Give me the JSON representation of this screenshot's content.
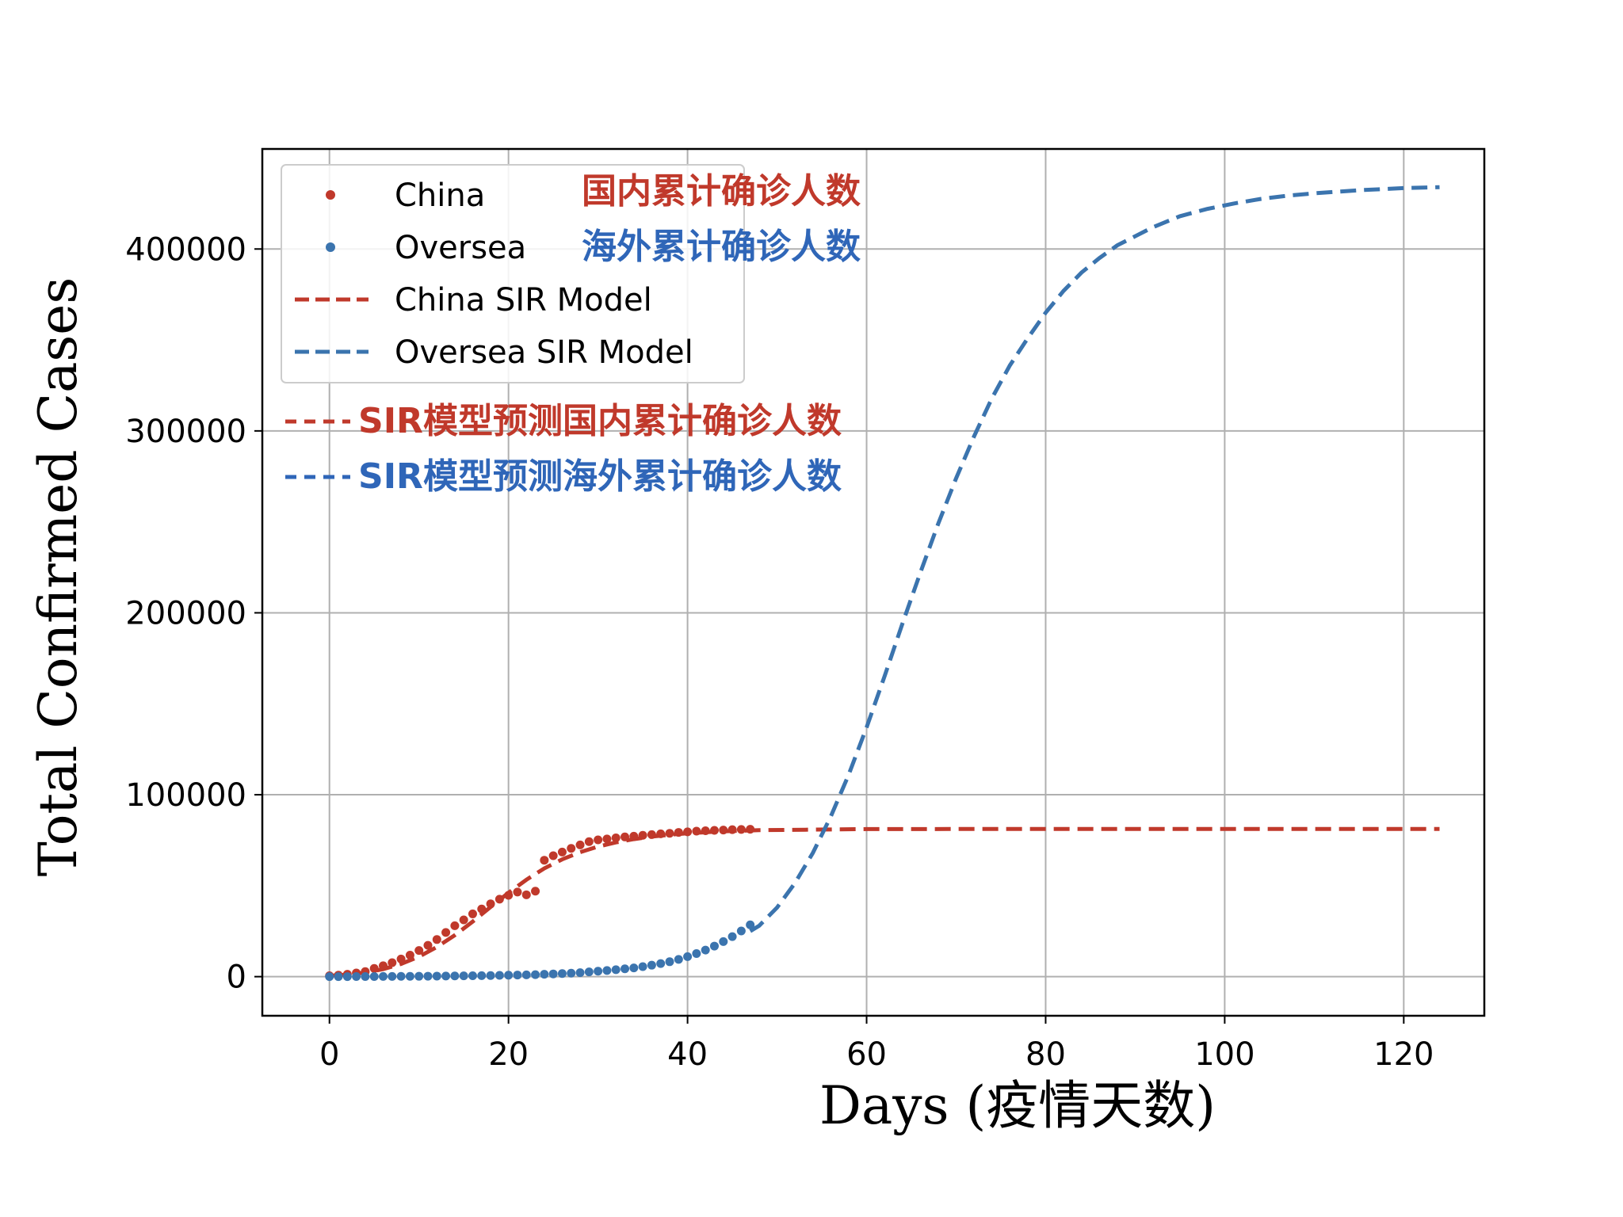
{
  "colors": {
    "china": "#c0392b",
    "oversea": "#3b74ae",
    "china_label": "#c0392b",
    "oversea_label": "#2f66b8"
  },
  "chart_data": {
    "type": "line",
    "xlabel": "Days (疫情天数)",
    "ylabel": "Total Confirmed Cases",
    "xlim": [
      -7.5,
      129
    ],
    "ylim": [
      -21500,
      455000
    ],
    "xticks": [
      0,
      20,
      40,
      60,
      80,
      100,
      120
    ],
    "yticks": [
      0,
      100000,
      200000,
      300000,
      400000
    ],
    "grid": true,
    "legend_position": "top-left",
    "legend": [
      {
        "label": "China",
        "marker": "dot",
        "color": "#c0392b"
      },
      {
        "label": "Oversea",
        "marker": "dot",
        "color": "#3b74ae"
      },
      {
        "label": "China SIR Model",
        "marker": "dashed",
        "color": "#c0392b"
      },
      {
        "label": "Oversea SIR Model",
        "marker": "dashed",
        "color": "#3b74ae"
      }
    ],
    "annotations": {
      "china_cn": "国内累计确诊人数",
      "oversea_cn": "海外累计确诊人数",
      "china_model_cn": "SIR模型预测国内累计确诊人数",
      "oversea_model_cn": "SIR模型预测海外累计确诊人数"
    },
    "series": [
      {
        "name": "China",
        "style": "dots",
        "color": "#c0392b",
        "x": [
          0,
          1,
          2,
          3,
          4,
          5,
          6,
          7,
          8,
          9,
          10,
          11,
          12,
          13,
          14,
          15,
          16,
          17,
          18,
          19,
          20,
          21,
          22,
          23,
          24,
          25,
          26,
          27,
          28,
          29,
          30,
          31,
          32,
          33,
          34,
          35,
          36,
          37,
          38,
          39,
          40,
          41,
          42,
          43,
          44,
          45,
          46,
          47
        ],
        "y": [
          500,
          800,
          1300,
          2000,
          2800,
          4500,
          6000,
          7700,
          9700,
          11800,
          14400,
          17200,
          20400,
          24300,
          28000,
          31200,
          34500,
          37200,
          40000,
          42600,
          44700,
          46500,
          45000,
          47000,
          64000,
          66500,
          68500,
          70500,
          72400,
          74200,
          75200,
          75700,
          76300,
          76800,
          77200,
          77700,
          78100,
          78500,
          78800,
          79300,
          79600,
          80000,
          80200,
          80400,
          80600,
          80800,
          80900,
          81000
        ]
      },
      {
        "name": "Oversea",
        "style": "dots",
        "color": "#3b74ae",
        "x": [
          0,
          1,
          2,
          3,
          4,
          5,
          6,
          7,
          8,
          9,
          10,
          11,
          12,
          13,
          14,
          15,
          16,
          17,
          18,
          19,
          20,
          21,
          22,
          23,
          24,
          25,
          26,
          27,
          28,
          29,
          30,
          31,
          32,
          33,
          34,
          35,
          36,
          37,
          38,
          39,
          40,
          41,
          42,
          43,
          44,
          45,
          46,
          47
        ],
        "y": [
          10,
          20,
          30,
          40,
          60,
          80,
          100,
          120,
          150,
          180,
          200,
          250,
          300,
          350,
          400,
          450,
          500,
          550,
          600,
          700,
          800,
          900,
          1000,
          1100,
          1300,
          1500,
          1700,
          1900,
          2200,
          2600,
          3000,
          3400,
          3800,
          4300,
          4800,
          5500,
          6300,
          7200,
          8200,
          9500,
          11000,
          12700,
          14600,
          16800,
          19300,
          22000,
          25100,
          28500
        ]
      },
      {
        "name": "China SIR Model",
        "style": "dashed",
        "color": "#c0392b",
        "x": [
          0,
          2,
          4,
          6,
          8,
          10,
          12,
          14,
          16,
          18,
          20,
          22,
          24,
          26,
          28,
          30,
          32,
          34,
          36,
          38,
          40,
          44,
          48,
          60,
          80,
          100,
          124
        ],
        "y": [
          500,
          1100,
          2200,
          4100,
          7000,
          11000,
          16300,
          22800,
          30300,
          38300,
          46100,
          53300,
          59500,
          64500,
          68400,
          71500,
          73800,
          75600,
          77000,
          78000,
          78800,
          79900,
          80500,
          81100,
          81200,
          81200,
          81200
        ]
      },
      {
        "name": "Oversea SIR Model",
        "style": "dashed",
        "color": "#3b74ae",
        "x": [
          47,
          48,
          50,
          52,
          54,
          56,
          58,
          60,
          62,
          64,
          66,
          68,
          70,
          72,
          74,
          76,
          78,
          80,
          82,
          84,
          86,
          88,
          90,
          92,
          95,
          98,
          101,
          104,
          107,
          110,
          115,
          120,
          124
        ],
        "y": [
          25000,
          28000,
          38000,
          51500,
          68000,
          88000,
          111000,
          137000,
          165000,
          194000,
          222000,
          249000,
          274000,
          297000,
          318000,
          336000,
          351000,
          365000,
          377000,
          387000,
          395000,
          402000,
          407000,
          412000,
          418000,
          422000,
          425000,
          427500,
          429300,
          430600,
          432300,
          433500,
          434000
        ]
      }
    ]
  }
}
